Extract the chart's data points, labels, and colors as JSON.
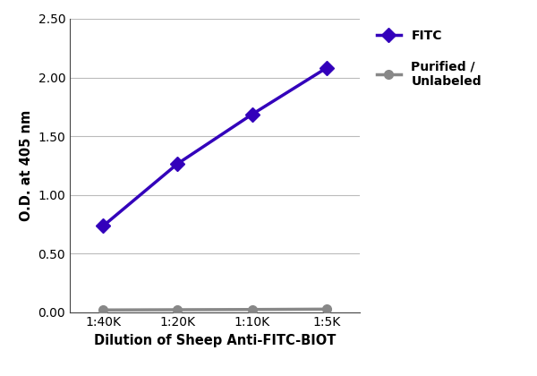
{
  "x_labels": [
    "1:40K",
    "1:20K",
    "1:10K",
    "1:5K"
  ],
  "x_values": [
    1,
    2,
    3,
    4
  ],
  "fitc_values": [
    0.735,
    1.265,
    1.685,
    2.08
  ],
  "purified_values": [
    0.018,
    0.02,
    0.022,
    0.025
  ],
  "fitc_color": "#3300bb",
  "purified_color": "#888888",
  "fitc_label": "FITC",
  "purified_label": "Purified /\nUnlabeled",
  "xlabel": "Dilution of Sheep Anti-FITC-BIOT",
  "ylabel": "O.D. at 405 nm",
  "ylim": [
    0.0,
    2.5
  ],
  "yticks": [
    0.0,
    0.5,
    1.0,
    1.5,
    2.0,
    2.5
  ],
  "line_width": 2.5,
  "fitc_marker": "D",
  "purified_marker": "o",
  "fitc_marker_size": 8,
  "purified_marker_size": 7,
  "bg_color": "#ffffff",
  "grid_color": "#bbbbbb",
  "xlabel_fontsize": 10.5,
  "ylabel_fontsize": 10.5,
  "tick_fontsize": 10,
  "legend_fontsize": 10
}
